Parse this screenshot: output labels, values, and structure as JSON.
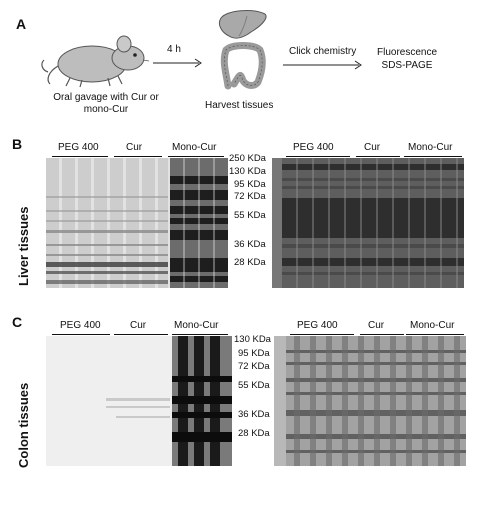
{
  "panel_a": {
    "letter": "A",
    "step1": "Oral gavage with Cur or mono-Cur",
    "step1_line1": "Oral gavage with Cur or",
    "step1_line2": "mono-Cur",
    "arrow1_label": "4 h",
    "step2": "Harvest tissues",
    "arrow2_label": "Click chemistry",
    "step3_line1": "Fluorescence",
    "step3_line2": "SDS-PAGE"
  },
  "panel_b": {
    "letter": "B",
    "row_label": "Liver tissues",
    "groups": [
      "PEG 400",
      "Cur",
      "Mono-Cur"
    ],
    "markers": [
      "250 KDa",
      "130 KDa",
      "95 KDa",
      "72 KDa",
      "55 KDa",
      "36 KDa",
      "28 KDa"
    ]
  },
  "panel_c": {
    "letter": "C",
    "row_label": "Colon tissues",
    "groups": [
      "PEG 400",
      "Cur",
      "Mono-Cur"
    ],
    "markers": [
      "130 KDa",
      "95 KDa",
      "72 KDa",
      "55 KDa",
      "36 KDa",
      "28 KDa"
    ]
  }
}
